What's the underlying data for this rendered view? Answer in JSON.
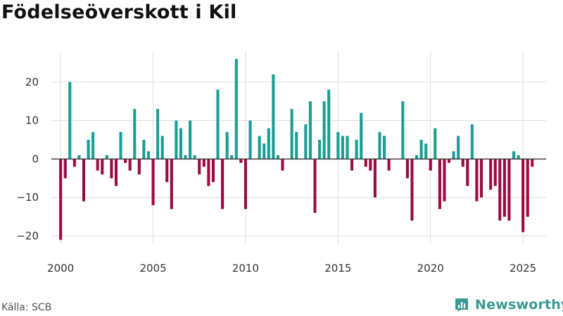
{
  "header": {
    "title": "Födelseöverskott i Kil"
  },
  "footer": {
    "source": "Källa: SCB",
    "brand": "Newsworthy"
  },
  "colors": {
    "positive": "#1a9e94",
    "negative": "#9c0a42",
    "grid": "#dddddd",
    "zero_line": "#333333",
    "brand": "#3a9a93"
  },
  "chart_data": {
    "type": "bar",
    "title": "Födelseöverskott i Kil",
    "xlabel": "",
    "ylabel": "",
    "frequency": "quarterly",
    "ylim": [
      -22,
      28
    ],
    "xlim": [
      1999.5,
      2026.25
    ],
    "y_ticks": [
      {
        "value": 20,
        "label": "20"
      },
      {
        "value": 10,
        "label": "10"
      },
      {
        "value": 0,
        "label": "0"
      },
      {
        "value": -10,
        "label": "−10"
      },
      {
        "value": -20,
        "label": "−20"
      }
    ],
    "x_ticks": [
      {
        "value": 2000,
        "label": "2000"
      },
      {
        "value": 2005,
        "label": "2005"
      },
      {
        "value": 2010,
        "label": "2010"
      },
      {
        "value": 2015,
        "label": "2015"
      },
      {
        "value": 2020,
        "label": "2020"
      },
      {
        "value": 2025,
        "label": "2025"
      }
    ],
    "start_year": 2000,
    "values": [
      -21,
      -5,
      20,
      -2,
      1,
      -11,
      5,
      7,
      -3,
      -4,
      1,
      -5,
      -7,
      7,
      -1,
      -3,
      13,
      -4,
      5,
      2,
      -12,
      13,
      6,
      -6,
      -13,
      10,
      8,
      1,
      10,
      1,
      -4,
      -2,
      -7,
      -6,
      18,
      -13,
      7,
      1,
      26,
      -1,
      -13,
      10,
      0,
      6,
      4,
      8,
      22,
      1,
      -3,
      0,
      13,
      7,
      0,
      9,
      15,
      -14,
      5,
      15,
      18,
      0,
      7,
      6,
      6,
      -3,
      5,
      12,
      -2,
      -3,
      -10,
      7,
      6,
      -3,
      0,
      0,
      15,
      -5,
      -16,
      1,
      5,
      4,
      -3,
      8,
      -13,
      -11,
      -1,
      2,
      6,
      -2,
      -7,
      9,
      -11,
      -10,
      0,
      -8,
      -7,
      -16,
      -15,
      -16,
      2,
      1,
      -19,
      -15,
      -2
    ]
  }
}
